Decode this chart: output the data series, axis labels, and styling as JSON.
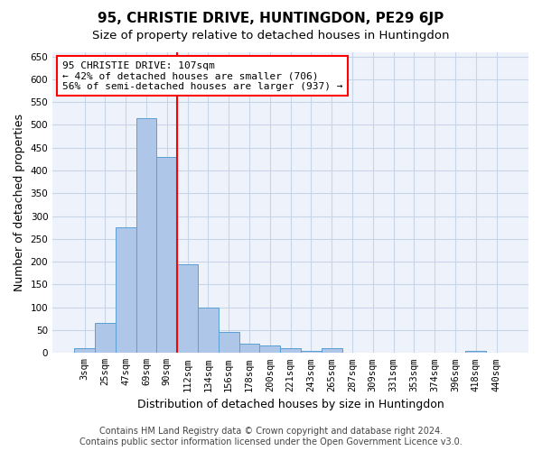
{
  "title": "95, CHRISTIE DRIVE, HUNTINGDON, PE29 6JP",
  "subtitle": "Size of property relative to detached houses in Huntingdon",
  "xlabel": "Distribution of detached houses by size in Huntingdon",
  "ylabel": "Number of detached properties",
  "bin_labels": [
    "3sqm",
    "25sqm",
    "47sqm",
    "69sqm",
    "90sqm",
    "112sqm",
    "134sqm",
    "156sqm",
    "178sqm",
    "200sqm",
    "221sqm",
    "243sqm",
    "265sqm",
    "287sqm",
    "309sqm",
    "331sqm",
    "353sqm",
    "374sqm",
    "396sqm",
    "418sqm",
    "440sqm"
  ],
  "bar_heights": [
    10,
    65,
    275,
    515,
    430,
    195,
    100,
    47,
    20,
    17,
    10,
    5,
    10,
    0,
    0,
    0,
    0,
    0,
    0,
    5,
    0
  ],
  "bar_color": "#aec6e8",
  "bar_edge_color": "#5a9fd4",
  "grid_color": "#c8d4e8",
  "bg_color": "#eef2fa",
  "vline_x": 4.5,
  "vline_color": "red",
  "annotation_text": "95 CHRISTIE DRIVE: 107sqm\n← 42% of detached houses are smaller (706)\n56% of semi-detached houses are larger (937) →",
  "annotation_box_color": "white",
  "annotation_box_edge": "red",
  "ylim": [
    0,
    660
  ],
  "yticks": [
    0,
    50,
    100,
    150,
    200,
    250,
    300,
    350,
    400,
    450,
    500,
    550,
    600,
    650
  ],
  "footer1": "Contains HM Land Registry data © Crown copyright and database right 2024.",
  "footer2": "Contains public sector information licensed under the Open Government Licence v3.0.",
  "title_fontsize": 11,
  "subtitle_fontsize": 9.5,
  "axis_label_fontsize": 9,
  "tick_fontsize": 7.5,
  "annotation_fontsize": 8,
  "footer_fontsize": 7
}
